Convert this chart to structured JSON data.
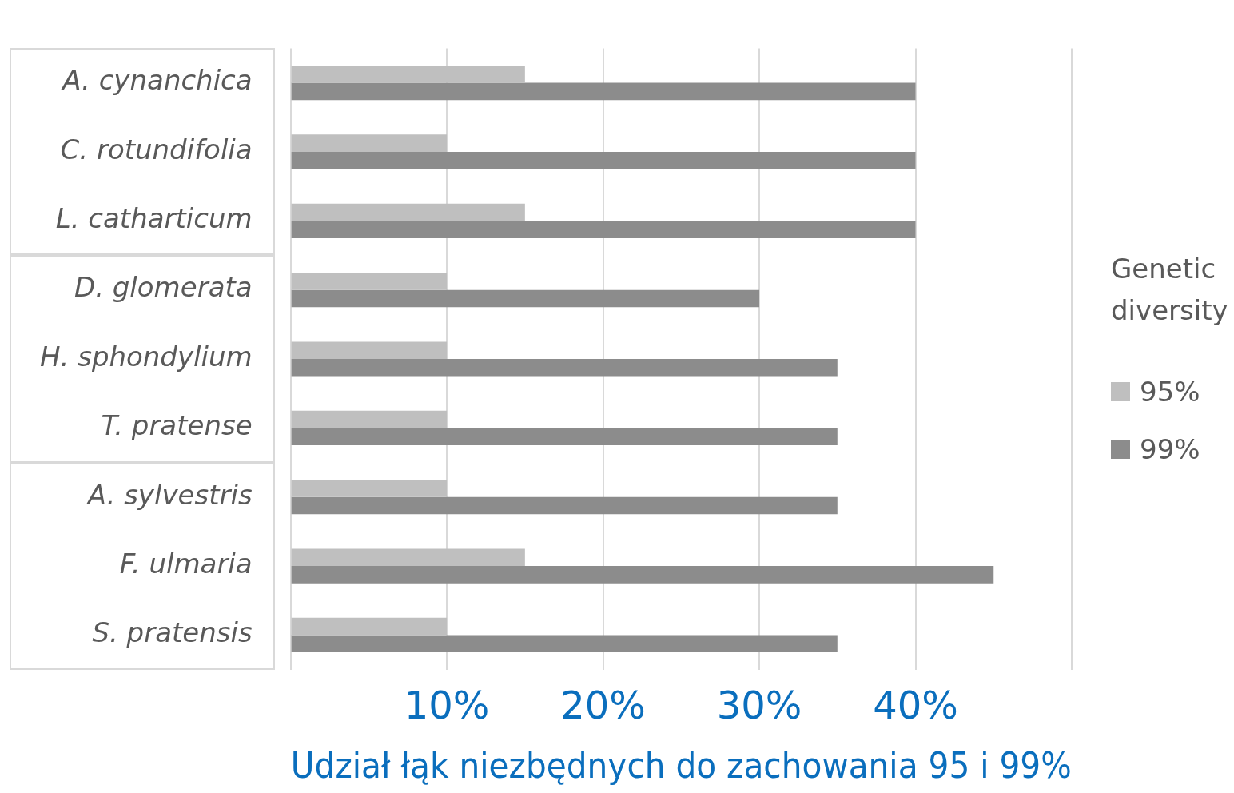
{
  "chart_data": {
    "type": "bar",
    "orientation": "horizontal",
    "xlabel": "Udział łąk niezbędnych do zachowania 95 i 99%",
    "legend_title": "Genetic diversity",
    "categories": [
      "A. cynanchica",
      "C. rotundifolia",
      "L. catharticum",
      "D. glomerata",
      "H. sphondylium",
      "T. pratense",
      "A. sylvestris",
      "F. ulmaria",
      "S. pratensis"
    ],
    "series": [
      {
        "name": "95%",
        "color": "#bfbfbf",
        "values": [
          15,
          10,
          15,
          10,
          10,
          10,
          10,
          15,
          10
        ]
      },
      {
        "name": "99%",
        "color": "#8c8c8c",
        "values": [
          40,
          40,
          40,
          30,
          35,
          35,
          35,
          45,
          35
        ]
      }
    ],
    "xlim": [
      0,
      50
    ],
    "xticks": [
      {
        "value": 0,
        "label": null
      },
      {
        "value": 10,
        "label": "10%"
      },
      {
        "value": 20,
        "label": "20%"
      },
      {
        "value": 30,
        "label": "30%"
      },
      {
        "value": 40,
        "label": "40%"
      },
      {
        "value": 50,
        "label": null
      }
    ],
    "grid": "x",
    "legend": "right"
  }
}
